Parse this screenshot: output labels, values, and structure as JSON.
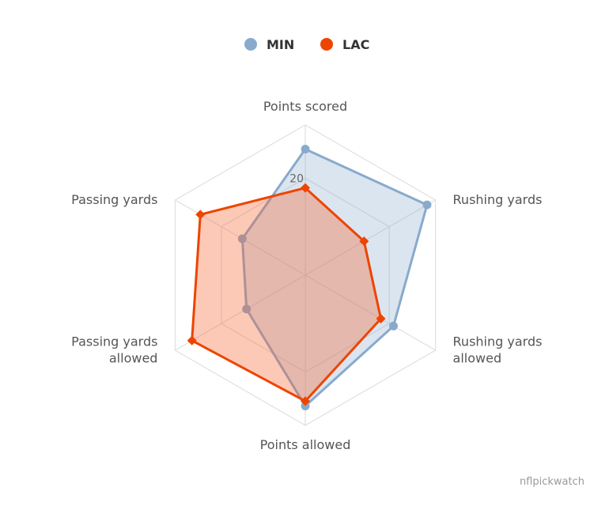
{
  "chart_data": {
    "type": "radar",
    "categories": [
      "Points scored",
      "Rushing yards",
      "Rushing yards allowed",
      "Points allowed",
      "Passing yards allowed",
      "Passing yards"
    ],
    "category_lines": [
      [
        "Points scored"
      ],
      [
        "Rushing yards"
      ],
      [
        "Rushing yards",
        "allowed"
      ],
      [
        "Points allowed"
      ],
      [
        "Passing yards",
        "allowed"
      ],
      [
        "Passing yards"
      ]
    ],
    "rmax": 31,
    "tick_values": [
      20
    ],
    "tick_labels": [
      "20"
    ],
    "grid": true,
    "legend_position": "top-center",
    "series": [
      {
        "name": "MIN",
        "color": "#88aacc",
        "fill": "rgba(136,170,204,0.30)",
        "marker": "circle",
        "values": [
          26,
          29,
          21,
          27,
          14,
          15
        ]
      },
      {
        "name": "LAC",
        "color": "#ee4400",
        "fill": "rgba(245,100,50,0.35)",
        "marker": "diamond",
        "values": [
          18,
          14,
          18,
          26,
          27,
          25
        ]
      }
    ]
  },
  "credits": "nflpickwatch"
}
